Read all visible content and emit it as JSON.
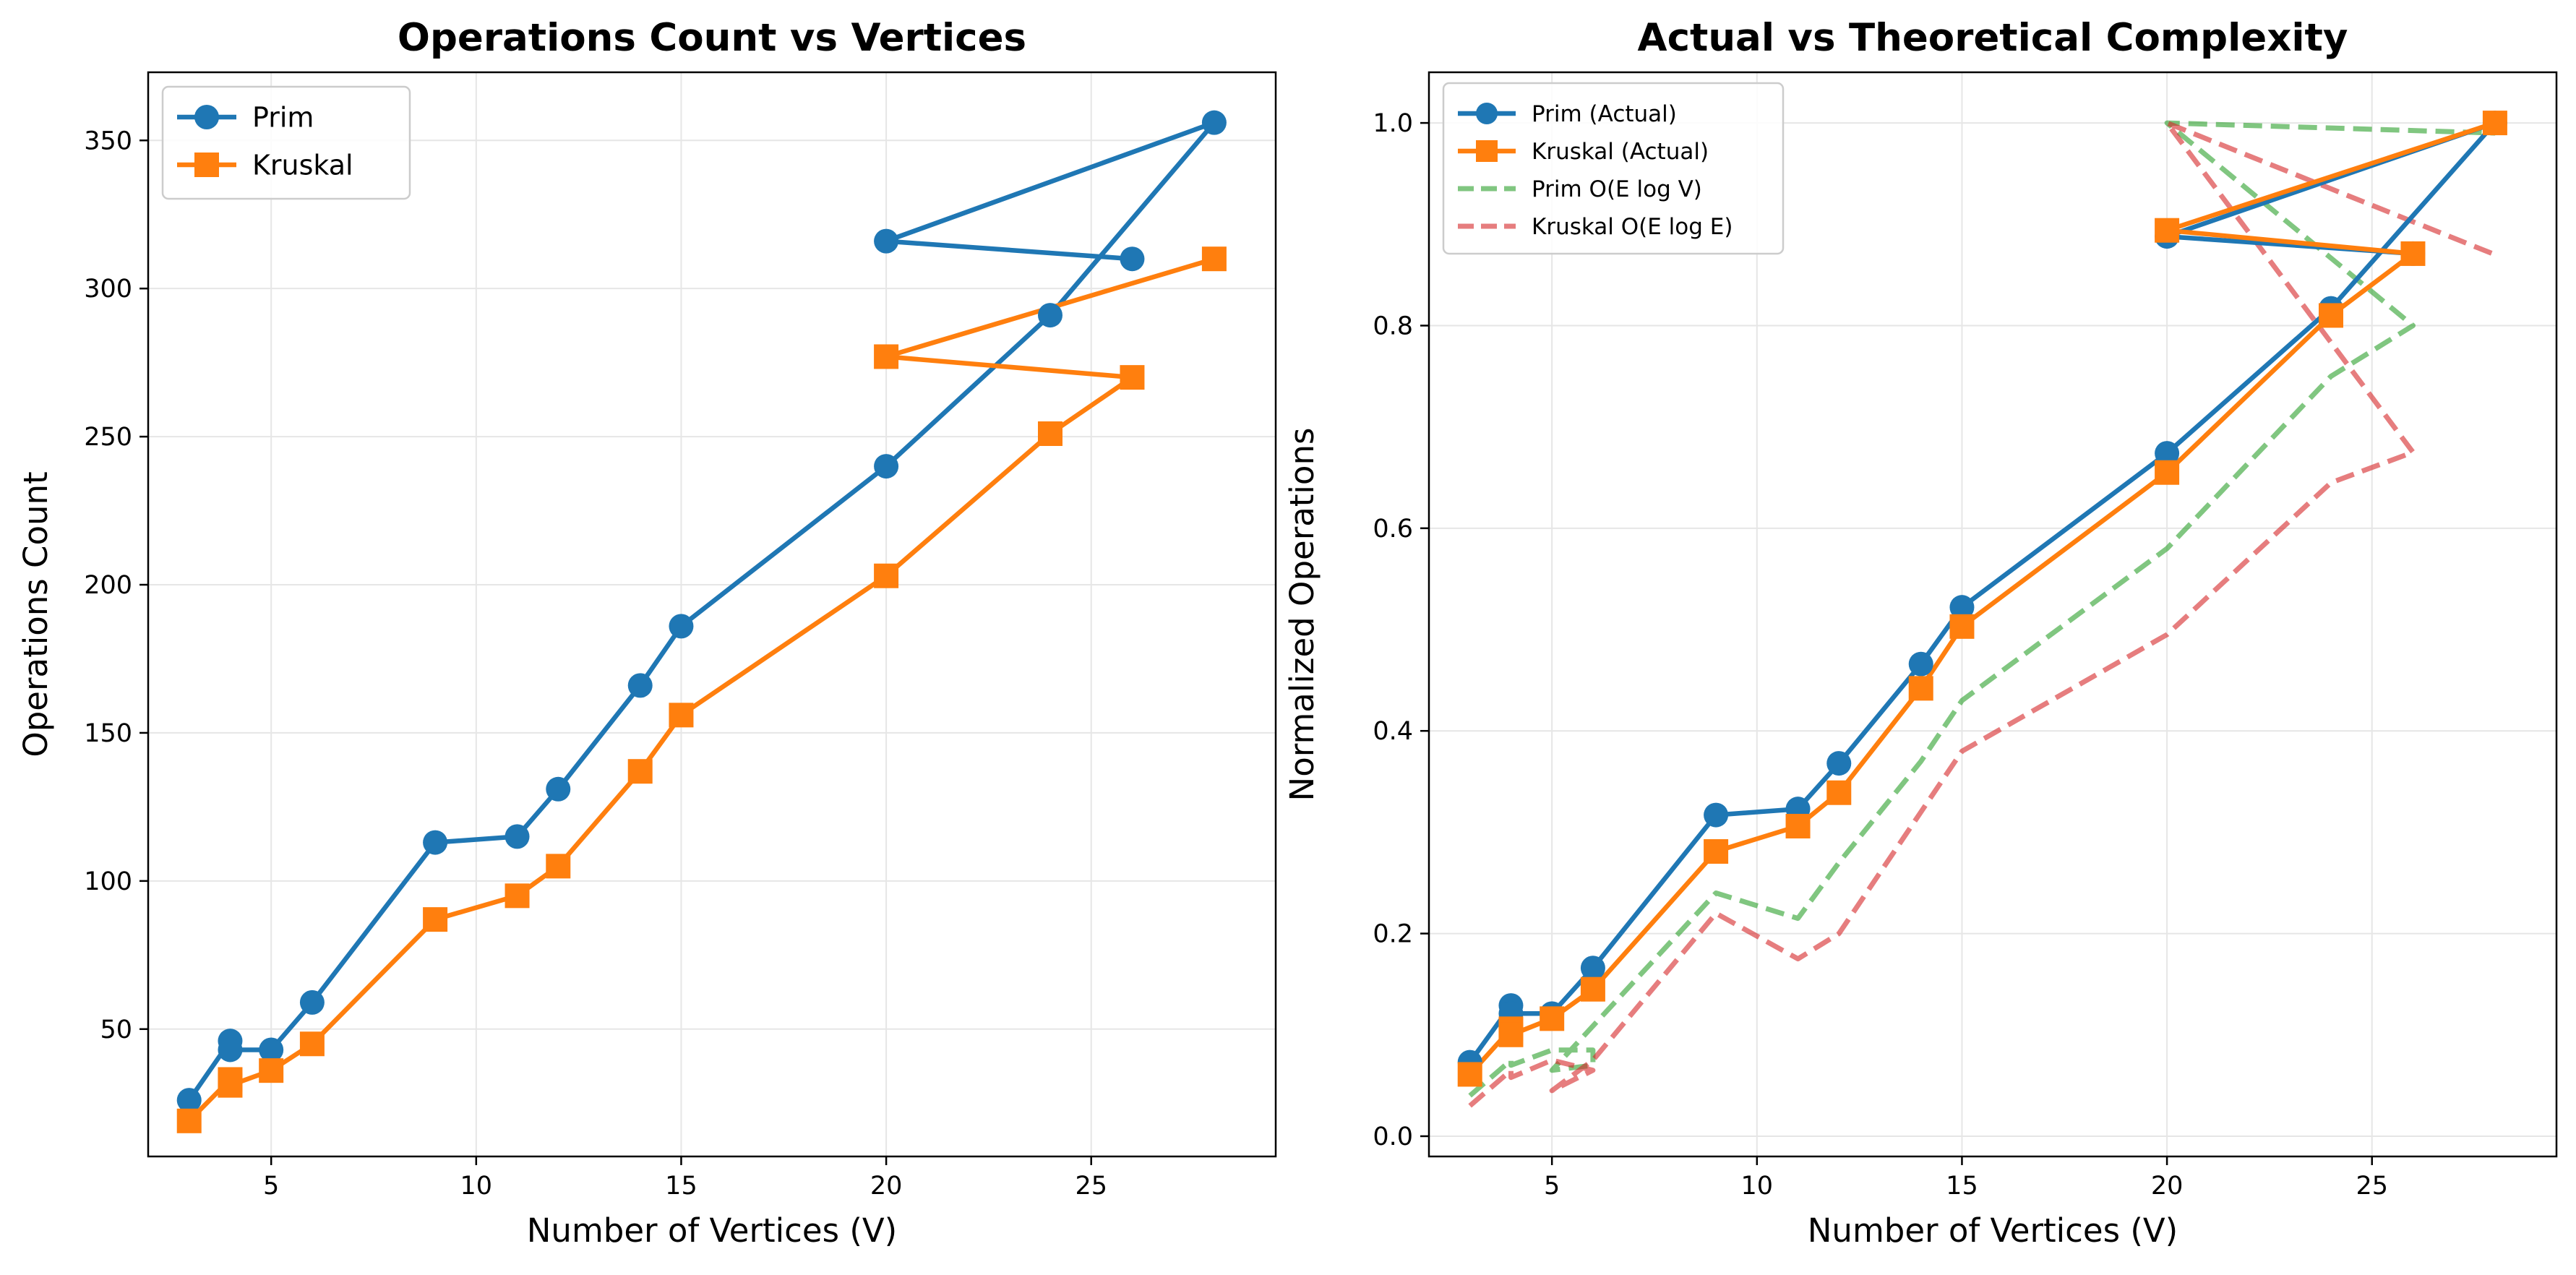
{
  "chart_data": [
    {
      "type": "line",
      "title": "Operations Count vs Vertices",
      "xlabel": "Number of Vertices (V)",
      "ylabel": "Operations Count",
      "xlim": [
        2,
        29.5
      ],
      "ylim": [
        7,
        373
      ],
      "xticks": [
        5,
        10,
        15,
        20,
        25
      ],
      "yticks": [
        50,
        100,
        150,
        200,
        250,
        300,
        350
      ],
      "grid": true,
      "legend": "top-left",
      "series": [
        {
          "name": "Prim",
          "color": "#1f77b4",
          "marker": "circle",
          "style": "solid",
          "x": [
            3,
            4,
            4,
            5,
            6,
            9,
            11,
            12,
            14,
            15,
            20,
            24,
            28,
            20,
            26
          ],
          "y": [
            26,
            46,
            43,
            43,
            59,
            113,
            115,
            131,
            166,
            186,
            240,
            291,
            356,
            316,
            310
          ]
        },
        {
          "name": "Kruskal",
          "color": "#ff7f0e",
          "marker": "square",
          "style": "solid",
          "x": [
            3,
            4,
            4,
            5,
            6,
            9,
            11,
            12,
            14,
            15,
            20,
            24,
            26,
            20,
            28
          ],
          "y": [
            19,
            33,
            31,
            36,
            45,
            87,
            95,
            105,
            137,
            156,
            203,
            251,
            270,
            277,
            310
          ]
        }
      ]
    },
    {
      "type": "line",
      "title": "Actual vs Theoretical Complexity",
      "xlabel": "Number of Vertices (V)",
      "ylabel": "Normalized Operations",
      "xlim": [
        2,
        29.5
      ],
      "ylim": [
        -0.02,
        1.05
      ],
      "xticks": [
        5,
        10,
        15,
        20,
        25
      ],
      "yticks": [
        0.0,
        0.2,
        0.4,
        0.6,
        0.8,
        1.0
      ],
      "ytick_labels": [
        "0.0",
        "0.2",
        "0.4",
        "0.6",
        "0.8",
        "1.0"
      ],
      "grid": true,
      "legend": "top-left",
      "series": [
        {
          "name": "Prim (Actual)",
          "color": "#1f77b4",
          "marker": "circle",
          "style": "solid",
          "x": [
            3,
            4,
            4,
            5,
            6,
            9,
            11,
            12,
            14,
            15,
            20,
            24,
            28,
            20,
            26
          ],
          "y": [
            0.073,
            0.129,
            0.121,
            0.121,
            0.166,
            0.317,
            0.323,
            0.368,
            0.466,
            0.522,
            0.674,
            0.817,
            1.0,
            0.888,
            0.871
          ]
        },
        {
          "name": "Kruskal (Actual)",
          "color": "#ff7f0e",
          "marker": "square",
          "style": "solid",
          "x": [
            3,
            4,
            4,
            5,
            6,
            9,
            11,
            12,
            14,
            15,
            20,
            24,
            26,
            20,
            28
          ],
          "y": [
            0.061,
            0.106,
            0.1,
            0.116,
            0.145,
            0.281,
            0.306,
            0.339,
            0.442,
            0.503,
            0.655,
            0.81,
            0.871,
            0.894,
            1.0
          ]
        },
        {
          "name": "Prim O(E log V)",
          "color": "#2ca02c",
          "marker": "none",
          "style": "dashed",
          "x": [
            3,
            4,
            4,
            5,
            6,
            6,
            5,
            9,
            11,
            12,
            14,
            15,
            20,
            24,
            26,
            20,
            28
          ],
          "y": [
            0.04,
            0.075,
            0.07,
            0.085,
            0.085,
            0.07,
            0.065,
            0.24,
            0.215,
            0.27,
            0.37,
            0.43,
            0.58,
            0.75,
            0.8,
            1.0,
            0.99
          ]
        },
        {
          "name": "Kruskal O(E log E)",
          "color": "#d62728",
          "marker": "none",
          "style": "dashed",
          "x": [
            3,
            4,
            4,
            5,
            6,
            5,
            6,
            9,
            11,
            12,
            14,
            15,
            20,
            24,
            26,
            20,
            28
          ],
          "y": [
            0.03,
            0.065,
            0.058,
            0.075,
            0.065,
            0.045,
            0.075,
            0.22,
            0.175,
            0.2,
            0.32,
            0.38,
            0.495,
            0.645,
            0.675,
            1.0,
            0.87
          ]
        }
      ]
    }
  ]
}
